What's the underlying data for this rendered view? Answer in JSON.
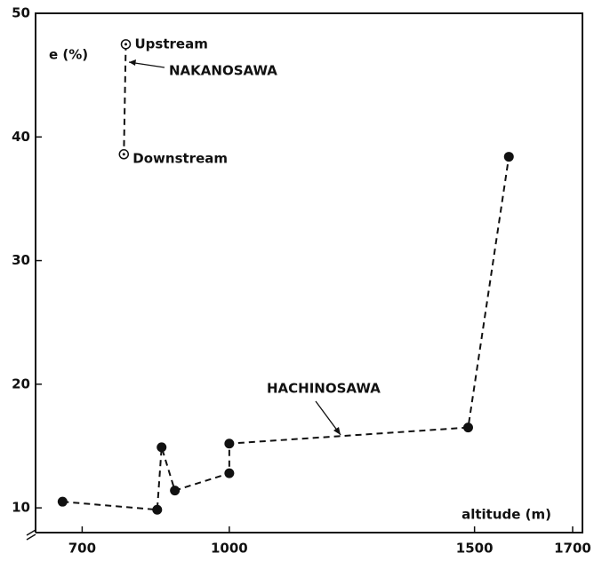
{
  "chart_data": {
    "type": "line",
    "y_label": "e (%)",
    "x_label": "altitude (m)",
    "xlim": [
      605,
      1720
    ],
    "ylim": [
      8,
      50
    ],
    "xticks": [
      700,
      1000,
      1500,
      1700
    ],
    "yticks": [
      10,
      20,
      30,
      40,
      50
    ],
    "series": [
      {
        "name": "HACHINOSAWA",
        "color": "#111111",
        "marker": "filled",
        "x": [
          660,
          853,
          862,
          889,
          1000,
          1000,
          1487,
          1570
        ],
        "values": [
          10.5,
          9.85,
          14.9,
          11.4,
          12.8,
          15.2,
          16.5,
          38.4
        ]
      },
      {
        "name": "NAKANOSAWA",
        "color": "#111111",
        "marker": "open",
        "x": [
          789,
          785
        ],
        "values": [
          47.5,
          38.6
        ]
      }
    ],
    "annotations": [
      "Upstream",
      "Downstream"
    ]
  }
}
